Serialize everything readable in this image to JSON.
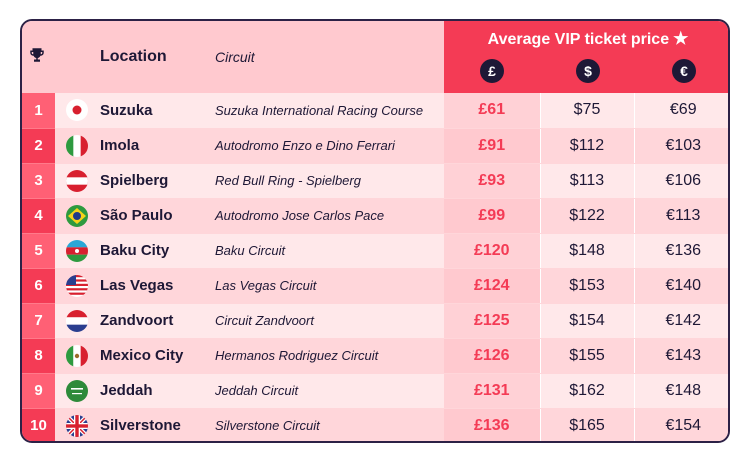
{
  "header": {
    "location_label": "Location",
    "circuit_label": "Circuit",
    "price_title": "Average VIP ticket price",
    "currencies": [
      {
        "symbol": "£",
        "name": "pound-icon"
      },
      {
        "symbol": "$",
        "name": "dollar-icon"
      },
      {
        "symbol": "€",
        "name": "euro-icon"
      }
    ],
    "trophy_icon": "trophy-icon",
    "star_icon": "star-icon"
  },
  "rows": [
    {
      "rank": "1",
      "flag": "japan",
      "location": "Suzuka",
      "circuit": "Suzuka International Racing Course",
      "gbp": "£61",
      "usd": "$75",
      "eur": "€69"
    },
    {
      "rank": "2",
      "flag": "italy",
      "location": "Imola",
      "circuit": "Autodromo Enzo e Dino Ferrari",
      "gbp": "£91",
      "usd": "$112",
      "eur": "€103"
    },
    {
      "rank": "3",
      "flag": "austria",
      "location": "Spielberg",
      "circuit": "Red Bull Ring - Spielberg",
      "gbp": "£93",
      "usd": "$113",
      "eur": "€106"
    },
    {
      "rank": "4",
      "flag": "brazil",
      "location": "São Paulo",
      "circuit": "Autodromo Jose Carlos Pace",
      "gbp": "£99",
      "usd": "$122",
      "eur": "€113"
    },
    {
      "rank": "5",
      "flag": "azerbaijan",
      "location": "Baku City",
      "circuit": "Baku Circuit",
      "gbp": "£120",
      "usd": "$148",
      "eur": "€136"
    },
    {
      "rank": "6",
      "flag": "usa",
      "location": "Las Vegas",
      "circuit": "Las Vegas Circuit",
      "gbp": "£124",
      "usd": "$153",
      "eur": "€140"
    },
    {
      "rank": "7",
      "flag": "netherlands",
      "location": "Zandvoort",
      "circuit": "Circuit Zandvoort",
      "gbp": "£125",
      "usd": "$154",
      "eur": "€142"
    },
    {
      "rank": "8",
      "flag": "mexico",
      "location": "Mexico City",
      "circuit": "Hermanos Rodriguez Circuit",
      "gbp": "£126",
      "usd": "$155",
      "eur": "€143"
    },
    {
      "rank": "9",
      "flag": "saudi-arabia",
      "location": "Jeddah",
      "circuit": "Jeddah Circuit",
      "gbp": "£131",
      "usd": "$162",
      "eur": "€148"
    },
    {
      "rank": "10",
      "flag": "uk",
      "location": "Silverstone",
      "circuit": "Silverstone Circuit",
      "gbp": "£136",
      "usd": "$165",
      "eur": "€154"
    }
  ],
  "colors": {
    "accent": "#f43b55",
    "dark": "#1e1836",
    "header_bg": "#ffc9cf",
    "row_light": "#ffe8ea",
    "row_dark": "#ffd6da"
  }
}
